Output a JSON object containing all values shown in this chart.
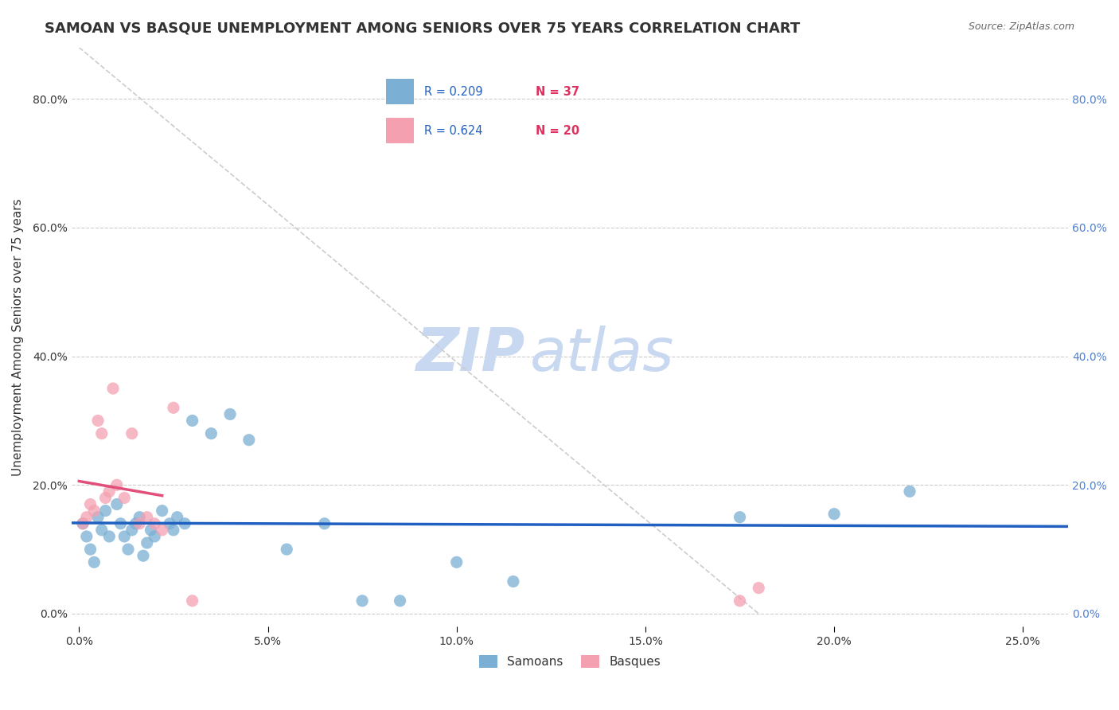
{
  "title": "SAMOAN VS BASQUE UNEMPLOYMENT AMONG SENIORS OVER 75 YEARS CORRELATION CHART",
  "source": "Source: ZipAtlas.com",
  "xlabel_ticks": [
    0.0,
    0.05,
    0.1,
    0.15,
    0.2,
    0.25
  ],
  "xlabel_labels": [
    "0.0%",
    "5.0%",
    "10.0%",
    "15.0%",
    "20.0%",
    "25.0%"
  ],
  "ylabel_ticks": [
    0.0,
    0.2,
    0.4,
    0.6,
    0.8
  ],
  "ylabel_labels": [
    "0.0%",
    "20.0%",
    "40.0%",
    "60.0%",
    "80.0%"
  ],
  "xlim": [
    -0.002,
    0.262
  ],
  "ylim": [
    -0.02,
    0.88
  ],
  "ylabel": "Unemployment Among Seniors over 75 years",
  "samoans_R": 0.209,
  "samoans_N": 37,
  "basques_R": 0.624,
  "basques_N": 20,
  "samoans_color": "#7bafd4",
  "basques_color": "#f4a0b0",
  "samoans_line_color": "#2060c0",
  "basques_line_color": "#e0507a",
  "ref_line_color": "#cccccc",
  "legend_R_color": "#2060c0",
  "legend_N_color": "#e03060",
  "samoans_x": [
    0.001,
    0.002,
    0.003,
    0.004,
    0.005,
    0.006,
    0.007,
    0.008,
    0.01,
    0.011,
    0.012,
    0.013,
    0.014,
    0.015,
    0.016,
    0.017,
    0.018,
    0.019,
    0.02,
    0.022,
    0.024,
    0.025,
    0.026,
    0.028,
    0.03,
    0.035,
    0.04,
    0.045,
    0.055,
    0.065,
    0.075,
    0.085,
    0.1,
    0.115,
    0.175,
    0.2,
    0.22
  ],
  "samoans_y": [
    0.14,
    0.12,
    0.1,
    0.08,
    0.15,
    0.13,
    0.16,
    0.12,
    0.17,
    0.14,
    0.12,
    0.1,
    0.13,
    0.14,
    0.15,
    0.09,
    0.11,
    0.13,
    0.12,
    0.16,
    0.14,
    0.13,
    0.15,
    0.14,
    0.3,
    0.28,
    0.31,
    0.27,
    0.1,
    0.14,
    0.02,
    0.02,
    0.08,
    0.05,
    0.15,
    0.155,
    0.19
  ],
  "basques_x": [
    0.001,
    0.002,
    0.003,
    0.004,
    0.005,
    0.006,
    0.007,
    0.008,
    0.009,
    0.01,
    0.012,
    0.014,
    0.016,
    0.018,
    0.02,
    0.022,
    0.025,
    0.03,
    0.175,
    0.18
  ],
  "basques_y": [
    0.14,
    0.15,
    0.17,
    0.16,
    0.3,
    0.28,
    0.18,
    0.19,
    0.35,
    0.2,
    0.18,
    0.28,
    0.14,
    0.15,
    0.14,
    0.13,
    0.32,
    0.02,
    0.02,
    0.04
  ],
  "samoans_marker_size": 120,
  "basques_marker_size": 120,
  "watermark_zip": "ZIP",
  "watermark_atlas": "atlas",
  "watermark_color_zip": "#c8d8f0",
  "watermark_color_atlas": "#c8d8f0",
  "watermark_fontsize": 54
}
